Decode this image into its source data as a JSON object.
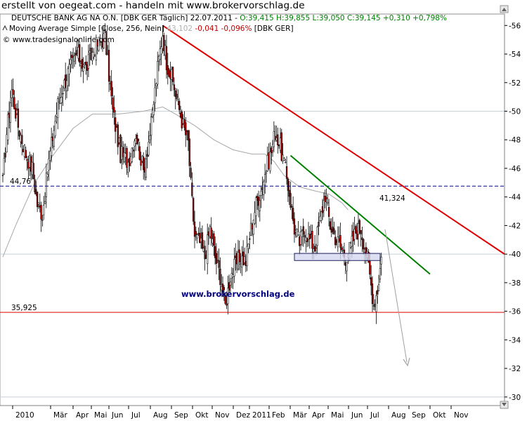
{
  "banner": "erstellt von oegeat.com - handeln mit www.brokervorschlag.de",
  "header": {
    "line1_prefix": "DEUTSCHE BANK AG NA O.N. [DBK GER  Täglich] 22.07.2011 - ",
    "line1_ohlc": "O:39,415 H:39,855 L:39,050 C:39,145 +0,310 +0,798%",
    "line2_prefix": "Moving Average Simple [Close, 256, Nein] ",
    "line2_value": "43,102",
    "line2_change": " -0,041 -0,096%",
    "line2_suffix": " [DBK GER]",
    "line3": "© www.tradesignalonline.com"
  },
  "watermark": "www.brokervorschlag.de",
  "colors": {
    "up": "#ffffff",
    "down": "#a50000",
    "ohlc_green": "#008000",
    "red_trend": "#e00000",
    "green_trend": "#008000",
    "moving_avg": "#a8a8a8",
    "support": "#e00000",
    "resistance": "#000080",
    "grid": "#c8d0d8"
  },
  "chart_data": {
    "type": "candlestick",
    "x_tick_labels": [
      "2010",
      "Mär",
      "Apr",
      "Mai",
      "Jun",
      "Jul",
      "Aug",
      "Sep",
      "Okt",
      "Nov",
      "Dez",
      "2011",
      "Feb",
      "Mär",
      "Apr",
      "Mai",
      "Jun",
      "Jul",
      "Aug",
      "Sep",
      "Okt",
      "Nov"
    ],
    "y_ticks": [
      30,
      32,
      34,
      36,
      38,
      40,
      42,
      44,
      46,
      48,
      50,
      52,
      54,
      56
    ],
    "ylim": [
      29.4,
      56.8
    ],
    "grid_y_values": [
      30,
      40,
      50
    ],
    "price_path": [
      [
        0,
        45.0
      ],
      [
        3,
        48.5
      ],
      [
        7,
        51.5
      ],
      [
        12,
        49.0
      ],
      [
        18,
        47.0
      ],
      [
        23,
        46.0
      ],
      [
        27,
        43.5
      ],
      [
        31,
        42.8
      ],
      [
        36,
        46.5
      ],
      [
        43,
        50.5
      ],
      [
        50,
        52.5
      ],
      [
        58,
        54.0
      ],
      [
        65,
        53.0
      ],
      [
        72,
        54.5
      ],
      [
        80,
        55.2
      ],
      [
        86,
        50.0
      ],
      [
        92,
        47.0
      ],
      [
        98,
        46.5
      ],
      [
        104,
        48.5
      ],
      [
        110,
        45.8
      ],
      [
        116,
        49.0
      ],
      [
        121,
        53.0
      ],
      [
        125,
        55.5
      ],
      [
        128,
        53.5
      ],
      [
        133,
        52.0
      ],
      [
        137,
        50.5
      ],
      [
        141,
        49.0
      ],
      [
        145,
        47.8
      ],
      [
        147,
        44.8
      ],
      [
        150,
        41.3
      ],
      [
        154,
        40.8
      ],
      [
        158,
        39.8
      ],
      [
        162,
        41.8
      ],
      [
        166,
        39.8
      ],
      [
        170,
        38.5
      ],
      [
        174,
        36.4
      ],
      [
        178,
        38.5
      ],
      [
        182,
        39.2
      ],
      [
        186,
        39.8
      ],
      [
        190,
        39.5
      ],
      [
        194,
        41.8
      ],
      [
        198,
        43.5
      ],
      [
        202,
        44.5
      ],
      [
        206,
        46.0
      ],
      [
        210,
        47.2
      ],
      [
        213,
        48.6
      ],
      [
        217,
        47.5
      ],
      [
        220,
        46.3
      ],
      [
        224,
        44.3
      ],
      [
        228,
        41.8
      ],
      [
        232,
        40.8
      ],
      [
        236,
        41.8
      ],
      [
        240,
        41.0
      ],
      [
        244,
        40.5
      ],
      [
        248,
        42.3
      ],
      [
        252,
        44.2
      ],
      [
        256,
        42.0
      ],
      [
        260,
        41.2
      ],
      [
        264,
        40.5
      ],
      [
        268,
        39.8
      ],
      [
        272,
        40.5
      ],
      [
        276,
        41.6
      ],
      [
        280,
        41.8
      ],
      [
        284,
        40.2
      ],
      [
        287,
        38.5
      ],
      [
        290,
        36.5
      ],
      [
        293,
        37.5
      ],
      [
        296,
        39.8
      ]
    ],
    "moving_average": [
      [
        0,
        39.8
      ],
      [
        10,
        42.0
      ],
      [
        25,
        45.0
      ],
      [
        40,
        47.0
      ],
      [
        55,
        48.8
      ],
      [
        70,
        49.8
      ],
      [
        90,
        49.8
      ],
      [
        110,
        50.0
      ],
      [
        125,
        50.3
      ],
      [
        135,
        49.8
      ],
      [
        150,
        49.0
      ],
      [
        165,
        48.0
      ],
      [
        180,
        47.3
      ],
      [
        195,
        47.0
      ],
      [
        205,
        47.0
      ],
      [
        212,
        46.5
      ],
      [
        220,
        45.5
      ],
      [
        232,
        44.7
      ],
      [
        245,
        44.4
      ],
      [
        255,
        44.2
      ],
      [
        265,
        43.6
      ],
      [
        270,
        43.1
      ]
    ],
    "annotations": {
      "support_level": 35.925,
      "support_label": "35,925",
      "resistance_level": 44.76,
      "resistance_label": "44,76",
      "green_trend_label": "41,324",
      "red_trend": {
        "from": [
          125,
          56.0
        ],
        "to": [
          340,
          40.0
        ]
      },
      "green_trend": {
        "from": [
          225,
          46.9
        ],
        "to": [
          300,
          38.6
        ]
      },
      "box": {
        "x0": 230,
        "x1": 266,
        "y0": 39.55,
        "y1": 40.05
      },
      "arrow": {
        "from": [
          268,
          39.3
        ],
        "to": [
          283,
          31.0
        ]
      },
      "projection_arrow_color": "#a0a0a0"
    }
  }
}
